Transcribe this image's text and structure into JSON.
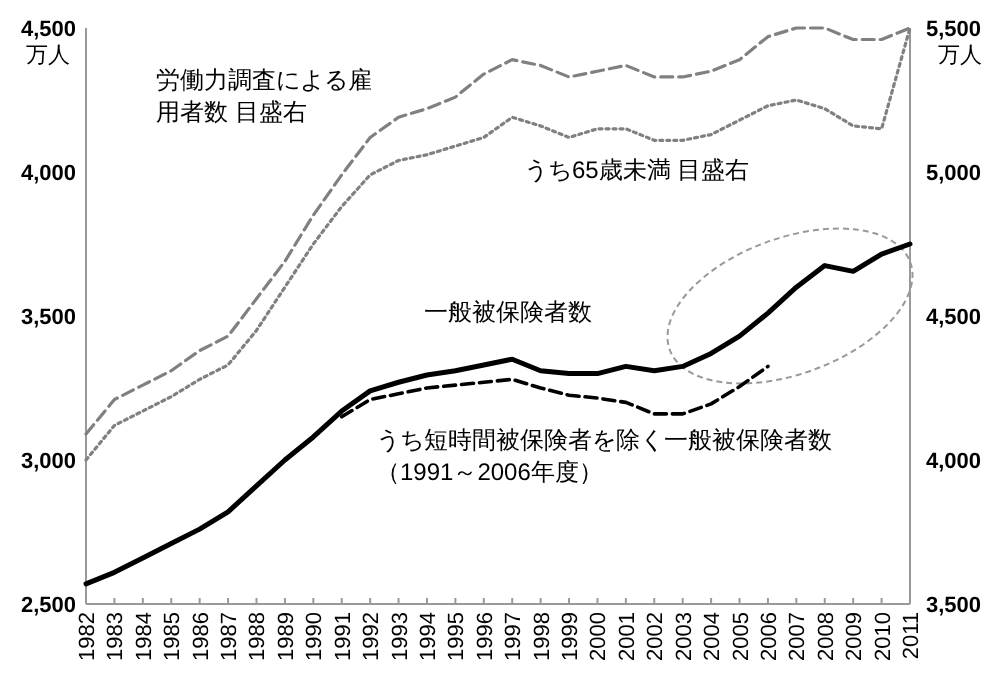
{
  "chart_data": {
    "type": "line",
    "categories": [
      "1982",
      "1983",
      "1984",
      "1985",
      "1986",
      "1987",
      "1988",
      "1989",
      "1990",
      "1991",
      "1992",
      "1993",
      "1994",
      "1995",
      "1996",
      "1997",
      "1998",
      "1999",
      "2000",
      "2001",
      "2002",
      "2003",
      "2004",
      "2005",
      "2006",
      "2007",
      "2008",
      "2009",
      "2010",
      "2011"
    ],
    "ylabel": "万人",
    "y2label": "万人",
    "ylim": [
      2500,
      4500
    ],
    "yticks": [
      {
        "value": 2500,
        "label": "2,500"
      },
      {
        "value": 3000,
        "label": "3,000"
      },
      {
        "value": 3500,
        "label": "3,500"
      },
      {
        "value": 4000,
        "label": "4,000"
      },
      {
        "value": 4500,
        "label": "4,500"
      }
    ],
    "y2lim": [
      3500,
      5500
    ],
    "y2ticks": [
      {
        "value": 3500,
        "label": "3,500"
      },
      {
        "value": 4000,
        "label": "4,000"
      },
      {
        "value": 4500,
        "label": "4,500"
      },
      {
        "value": 5000,
        "label": "5,000"
      },
      {
        "value": 5500,
        "label": "5,500"
      }
    ],
    "grid": false,
    "marker": "none",
    "series": [
      {
        "name": "労働力調査による雇用者数 目盛右",
        "color": "#808080",
        "axis": "y2",
        "line_style": "dashed",
        "values": [
          4090,
          4210,
          4260,
          4310,
          4380,
          4430,
          4560,
          4690,
          4850,
          4990,
          5120,
          5190,
          5220,
          5260,
          5340,
          5390,
          5370,
          5330,
          5350,
          5370,
          5330,
          5330,
          5350,
          5390,
          5470,
          5500,
          5500,
          5460,
          5460,
          5500
        ]
      },
      {
        "name": "うち65歳未満  目盛右",
        "color": "#808080",
        "axis": "y2",
        "line_style": "dotted",
        "values": [
          4000,
          4120,
          4170,
          4220,
          4280,
          4330,
          4450,
          4600,
          4750,
          4880,
          4990,
          5040,
          5060,
          5090,
          5120,
          5190,
          5160,
          5120,
          5150,
          5150,
          5110,
          5110,
          5130,
          5180,
          5230,
          5250,
          5220,
          5160,
          5150,
          5500
        ]
      },
      {
        "name": "一般被保険者数",
        "color": "#000000",
        "line_style": "solid",
        "values": [
          2570,
          2610,
          2660,
          2710,
          2760,
          2820,
          2910,
          3000,
          3080,
          3170,
          3240,
          3270,
          3295,
          3310,
          3330,
          3350,
          3310,
          3300,
          3300,
          3325,
          3310,
          3325,
          3370,
          3430,
          3510,
          3600,
          3675,
          3655,
          3715,
          3750
        ]
      },
      {
        "name": "うち短時間被保険者を除く一般被保険者数（1991～2006年度）",
        "color": "#000000",
        "line_style": "dashed",
        "values": [
          null,
          null,
          null,
          null,
          null,
          null,
          null,
          null,
          null,
          3150,
          3210,
          3230,
          3250,
          3260,
          3270,
          3280,
          3250,
          3225,
          3215,
          3200,
          3160,
          3160,
          3195,
          3255,
          3325,
          null,
          null,
          null,
          null,
          null
        ]
      }
    ]
  }
}
